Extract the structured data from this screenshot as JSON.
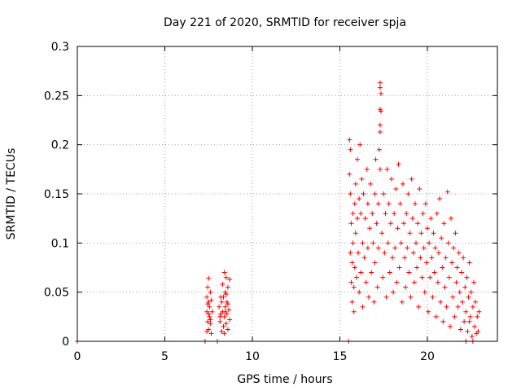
{
  "chart_data": {
    "type": "scatter",
    "title": "Day 221 of 2020, SRMTID for receiver spja",
    "xlabel": "GPS time / hours",
    "ylabel": "SRMTID / TECUs",
    "xlim": [
      0,
      24
    ],
    "ylim": [
      0,
      0.3
    ],
    "xticks": [
      0,
      5,
      10,
      15,
      20
    ],
    "xtick_labels": [
      "0",
      "5",
      "10",
      "15",
      "20"
    ],
    "yticks": [
      0,
      0.05,
      0.1,
      0.15,
      0.2,
      0.25,
      0.3
    ],
    "ytick_labels": [
      "0",
      "0.05",
      "0.1",
      "0.15",
      "0.2",
      "0.25",
      "0.3"
    ],
    "grid": true,
    "marker": "+",
    "color": "#ff0000",
    "points": [
      [
        0.0,
        0.0
      ],
      [
        7.3,
        0.0
      ],
      [
        8.0,
        0.0
      ],
      [
        15.5,
        0.0
      ],
      [
        7.4,
        0.045
      ],
      [
        7.4,
        0.03
      ],
      [
        7.45,
        0.055
      ],
      [
        7.45,
        0.02
      ],
      [
        7.5,
        0.064
      ],
      [
        7.5,
        0.04
      ],
      [
        7.5,
        0.012
      ],
      [
        7.55,
        0.035
      ],
      [
        7.55,
        0.025
      ],
      [
        7.6,
        0.05
      ],
      [
        7.6,
        0.018
      ],
      [
        7.65,
        0.008
      ],
      [
        7.65,
        0.042
      ],
      [
        7.7,
        0.03
      ],
      [
        7.4,
        0.01
      ],
      [
        7.5,
        0.028
      ],
      [
        7.45,
        0.038
      ],
      [
        7.6,
        0.022
      ],
      [
        8.1,
        0.035
      ],
      [
        8.15,
        0.02
      ],
      [
        8.2,
        0.045
      ],
      [
        8.2,
        0.028
      ],
      [
        8.25,
        0.01
      ],
      [
        8.3,
        0.058
      ],
      [
        8.3,
        0.03
      ],
      [
        8.35,
        0.045
      ],
      [
        8.35,
        0.015
      ],
      [
        8.4,
        0.07
      ],
      [
        8.4,
        0.025
      ],
      [
        8.45,
        0.05
      ],
      [
        8.45,
        0.035
      ],
      [
        8.5,
        0.065
      ],
      [
        8.5,
        0.018
      ],
      [
        8.55,
        0.04
      ],
      [
        8.55,
        0.028
      ],
      [
        8.6,
        0.055
      ],
      [
        8.6,
        0.012
      ],
      [
        8.65,
        0.032
      ],
      [
        8.7,
        0.063
      ],
      [
        8.7,
        0.022
      ],
      [
        8.25,
        0.04
      ],
      [
        8.4,
        0.008
      ],
      [
        8.5,
        0.048
      ],
      [
        8.6,
        0.038
      ],
      [
        8.15,
        0.025
      ],
      [
        8.45,
        0.03
      ],
      [
        15.55,
        0.205
      ],
      [
        15.55,
        0.17
      ],
      [
        15.6,
        0.195
      ],
      [
        15.6,
        0.15
      ],
      [
        15.6,
        0.09
      ],
      [
        15.65,
        0.06
      ],
      [
        15.65,
        0.12
      ],
      [
        15.7,
        0.04
      ],
      [
        15.7,
        0.08
      ],
      [
        15.75,
        0.13
      ],
      [
        15.75,
        0.1
      ],
      [
        15.8,
        0.055
      ],
      [
        15.8,
        0.03
      ],
      [
        15.85,
        0.14
      ],
      [
        15.85,
        0.075
      ],
      [
        15.9,
        0.16
      ],
      [
        15.9,
        0.11
      ],
      [
        15.95,
        0.065
      ],
      [
        16.0,
        0.185
      ],
      [
        16.0,
        0.125
      ],
      [
        16.05,
        0.09
      ],
      [
        16.1,
        0.145
      ],
      [
        16.1,
        0.05
      ],
      [
        16.15,
        0.2
      ],
      [
        16.2,
        0.13
      ],
      [
        16.2,
        0.07
      ],
      [
        16.25,
        0.165
      ],
      [
        16.3,
        0.1
      ],
      [
        16.3,
        0.035
      ],
      [
        16.35,
        0.15
      ],
      [
        16.4,
        0.085
      ],
      [
        16.45,
        0.125
      ],
      [
        16.5,
        0.06
      ],
      [
        16.55,
        0.175
      ],
      [
        16.6,
        0.14
      ],
      [
        16.6,
        0.095
      ],
      [
        16.65,
        0.045
      ],
      [
        16.7,
        0.115
      ],
      [
        16.75,
        0.16
      ],
      [
        16.8,
        0.07
      ],
      [
        16.85,
        0.13
      ],
      [
        16.9,
        0.1
      ],
      [
        16.95,
        0.04
      ],
      [
        17.0,
        0.15
      ],
      [
        17.0,
        0.08
      ],
      [
        17.05,
        0.185
      ],
      [
        17.1,
        0.12
      ],
      [
        17.15,
        0.055
      ],
      [
        17.2,
        0.095
      ],
      [
        17.2,
        0.14
      ],
      [
        17.3,
        0.263
      ],
      [
        17.3,
        0.258
      ],
      [
        17.35,
        0.252
      ],
      [
        17.3,
        0.236
      ],
      [
        17.35,
        0.234
      ],
      [
        17.3,
        0.22
      ],
      [
        17.3,
        0.213
      ],
      [
        17.25,
        0.195
      ],
      [
        17.3,
        0.175
      ],
      [
        17.4,
        0.11
      ],
      [
        17.45,
        0.065
      ],
      [
        17.5,
        0.15
      ],
      [
        17.55,
        0.09
      ],
      [
        17.6,
        0.13
      ],
      [
        17.65,
        0.045
      ],
      [
        17.7,
        0.175
      ],
      [
        17.75,
        0.1
      ],
      [
        17.8,
        0.14
      ],
      [
        17.85,
        0.07
      ],
      [
        17.9,
        0.12
      ],
      [
        17.95,
        0.165
      ],
      [
        18.0,
        0.085
      ],
      [
        18.05,
        0.05
      ],
      [
        18.1,
        0.13
      ],
      [
        18.15,
        0.095
      ],
      [
        18.2,
        0.155
      ],
      [
        18.25,
        0.06
      ],
      [
        18.3,
        0.115
      ],
      [
        18.35,
        0.18
      ],
      [
        18.4,
        0.075
      ],
      [
        18.45,
        0.14
      ],
      [
        18.5,
        0.1
      ],
      [
        18.55,
        0.04
      ],
      [
        18.6,
        0.16
      ],
      [
        18.65,
        0.12
      ],
      [
        18.7,
        0.085
      ],
      [
        18.75,
        0.055
      ],
      [
        18.8,
        0.13
      ],
      [
        18.85,
        0.095
      ],
      [
        18.9,
        0.15
      ],
      [
        18.95,
        0.07
      ],
      [
        19.0,
        0.11
      ],
      [
        19.05,
        0.045
      ],
      [
        19.1,
        0.165
      ],
      [
        19.15,
        0.125
      ],
      [
        19.2,
        0.09
      ],
      [
        19.25,
        0.06
      ],
      [
        19.3,
        0.14
      ],
      [
        19.35,
        0.1
      ],
      [
        19.4,
        0.075
      ],
      [
        19.45,
        0.12
      ],
      [
        19.5,
        0.035
      ],
      [
        19.55,
        0.155
      ],
      [
        19.6,
        0.085
      ],
      [
        19.65,
        0.11
      ],
      [
        19.7,
        0.065
      ],
      [
        19.75,
        0.13
      ],
      [
        19.8,
        0.095
      ],
      [
        19.85,
        0.05
      ],
      [
        19.9,
        0.14
      ],
      [
        19.95,
        0.08
      ],
      [
        20.0,
        0.115
      ],
      [
        20.05,
        0.03
      ],
      [
        20.1,
        0.1
      ],
      [
        20.15,
        0.065
      ],
      [
        20.2,
        0.125
      ],
      [
        20.25,
        0.085
      ],
      [
        20.3,
        0.045
      ],
      [
        20.35,
        0.11
      ],
      [
        20.4,
        0.07
      ],
      [
        20.45,
        0.095
      ],
      [
        20.5,
        0.025
      ],
      [
        20.55,
        0.13
      ],
      [
        20.6,
        0.06
      ],
      [
        20.65,
        0.09
      ],
      [
        20.7,
        0.145
      ],
      [
        20.75,
        0.04
      ],
      [
        20.8,
        0.105
      ],
      [
        20.85,
        0.075
      ],
      [
        20.9,
        0.02
      ],
      [
        20.95,
        0.12
      ],
      [
        21.0,
        0.055
      ],
      [
        21.05,
        0.085
      ],
      [
        21.1,
        0.035
      ],
      [
        21.15,
        0.152
      ],
      [
        21.2,
        0.1
      ],
      [
        21.25,
        0.065
      ],
      [
        21.3,
        0.015
      ],
      [
        21.35,
        0.125
      ],
      [
        21.4,
        0.08
      ],
      [
        21.45,
        0.045
      ],
      [
        21.5,
        0.095
      ],
      [
        21.55,
        0.025
      ],
      [
        21.6,
        0.11
      ],
      [
        21.65,
        0.06
      ],
      [
        21.7,
        0.075
      ],
      [
        21.75,
        0.035
      ],
      [
        21.8,
        0.09
      ],
      [
        21.85,
        0.05
      ],
      [
        21.9,
        0.012
      ],
      [
        21.95,
        0.07
      ],
      [
        22.0,
        0.04
      ],
      [
        22.05,
        0.085
      ],
      [
        22.1,
        0.02
      ],
      [
        22.15,
        0.055
      ],
      [
        22.2,
        0.03
      ],
      [
        22.25,
        0.065
      ],
      [
        22.3,
        0.01
      ],
      [
        22.35,
        0.045
      ],
      [
        22.4,
        0.08
      ],
      [
        22.45,
        0.025
      ],
      [
        22.5,
        0.05
      ],
      [
        22.55,
        0.005
      ],
      [
        22.6,
        0.035
      ],
      [
        22.65,
        0.06
      ],
      [
        22.7,
        0.015
      ],
      [
        22.75,
        0.04
      ],
      [
        22.8,
        0.008
      ],
      [
        22.85,
        0.025
      ],
      [
        22.9,
        0.01
      ],
      [
        22.95,
        0.03
      ],
      [
        22.4,
        0.02
      ],
      [
        22.6,
        0.0
      ],
      [
        22.2,
        0.0
      ]
    ]
  }
}
